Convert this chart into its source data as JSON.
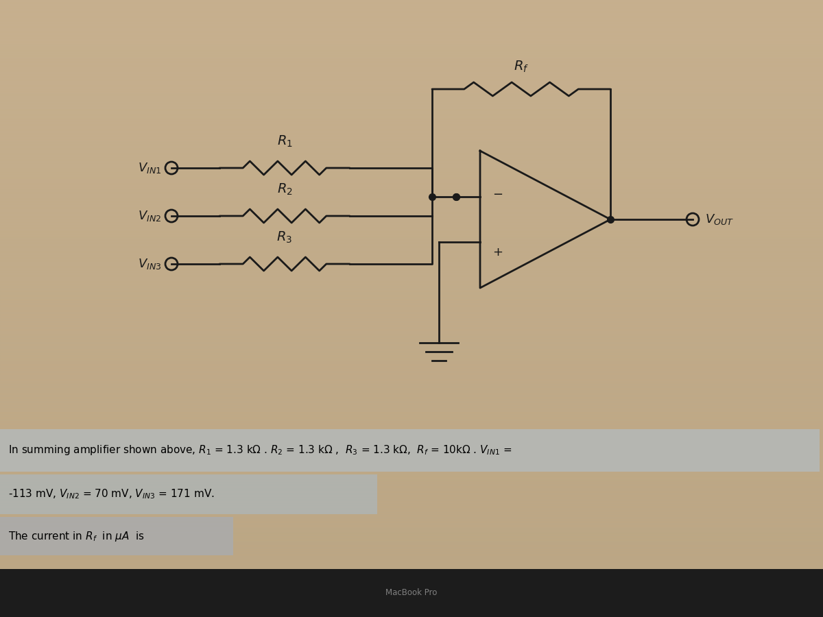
{
  "bg_color_top": "#c8b090",
  "bg_color": "#bba882",
  "circuit_color": "#1a1a1a",
  "fig_width": 12.0,
  "fig_height": 9.0,
  "macbook_text": "MacBook Pro",
  "bottom_bar_color": "#1e1e1e",
  "text_box1_color": "#b8bab8",
  "text_box2_color": "#b0b2b0",
  "text_box3_color": "#aaaaa8"
}
